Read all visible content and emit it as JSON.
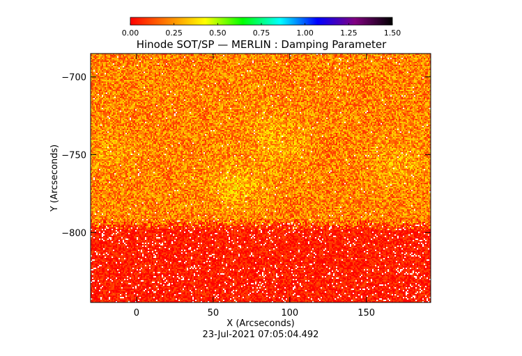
{
  "chart_data": {
    "type": "heatmap",
    "title": "Hinode SOT/SP — MERLIN : Damping Parameter",
    "xlabel": "X (Arcseconds)",
    "ylabel": "Y (Arcseconds)",
    "footer": "23-Jul-2021 07:05:04.492",
    "xlim": [
      -30,
      192
    ],
    "ylim": [
      -845,
      -685
    ],
    "xticks": [
      0,
      50,
      100,
      150
    ],
    "xtick_labels": [
      "0",
      "50",
      "100",
      "150"
    ],
    "yticks": [
      -700,
      -750,
      -800
    ],
    "ytick_labels": [
      "−700",
      "−750",
      "−800"
    ],
    "colorbar": {
      "range": [
        0.0,
        1.5
      ],
      "ticks": [
        0.0,
        0.25,
        0.5,
        0.75,
        1.0,
        1.25,
        1.5
      ],
      "tick_labels": [
        "0.00",
        "0.25",
        "0.50",
        "0.75",
        "1.00",
        "1.25",
        "1.50"
      ],
      "colors": [
        "#ff0000",
        "#ff8000",
        "#ffff00",
        "#00ff00",
        "#00ffff",
        "#0000ff",
        "#800080",
        "#000000"
      ]
    },
    "field_description": {
      "upper_region_mean": 0.22,
      "lower_region_mean": 0.05,
      "boundary_y": -795,
      "bright_patches": [
        {
          "x": 65,
          "y": -770,
          "value": 0.32
        },
        {
          "x": 95,
          "y": -745,
          "value": 0.28
        },
        {
          "x": 170,
          "y": -755,
          "value": 0.28
        },
        {
          "x": -20,
          "y": -750,
          "value": 0.26
        },
        {
          "x": 85,
          "y": -730,
          "value": 0.26
        }
      ]
    }
  }
}
